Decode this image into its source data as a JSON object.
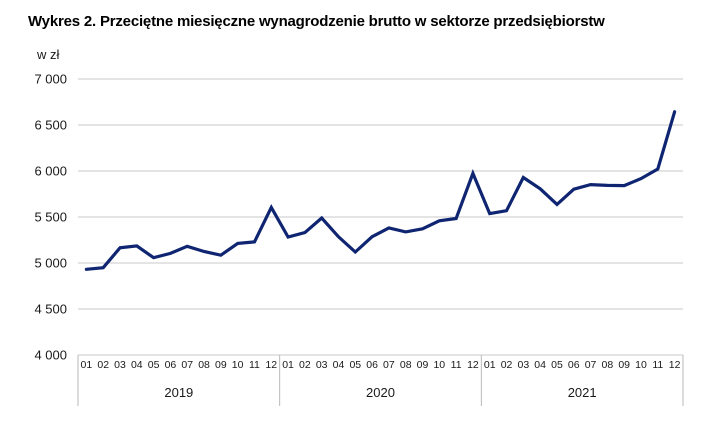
{
  "title": "Wykres 2. Przeciętne miesięczne wynagrodzenie brutto w sektorze przedsiębiorstw",
  "unit_label": "w zł",
  "colors": {
    "line": "#0f2572",
    "grid": "#c8c8c8",
    "axis_box": "#b9b9b9",
    "text": "#1a1a1a",
    "title_text": "#000000",
    "background": "#ffffff"
  },
  "chart_data": {
    "type": "line",
    "title": "Wykres 2. Przeciętne miesięczne wynagrodzenie brutto w sektorze przedsiębiorstw",
    "ylabel": "w zł",
    "xlabel": "",
    "ylim": [
      4000,
      7000
    ],
    "grid": true,
    "legend_position": "none",
    "yticks": [
      7000,
      6500,
      6000,
      5500,
      5000,
      4500,
      4000
    ],
    "ytick_labels": [
      "7 000",
      "6 500",
      "6 000",
      "5 500",
      "5 000",
      "4 500",
      "4 000"
    ],
    "month_labels": [
      "01",
      "02",
      "03",
      "04",
      "05",
      "06",
      "07",
      "08",
      "09",
      "10",
      "11",
      "12"
    ],
    "groups": [
      {
        "year": "2019",
        "values": [
          4932,
          4949,
          5165,
          5186,
          5058,
          5104,
          5182,
          5125,
          5085,
          5213,
          5229,
          5604
        ]
      },
      {
        "year": "2020",
        "values": [
          5283,
          5330,
          5489,
          5285,
          5120,
          5286,
          5382,
          5338,
          5372,
          5459,
          5484,
          5974
        ]
      },
      {
        "year": "2021",
        "values": [
          5537,
          5569,
          5929,
          5806,
          5637,
          5802,
          5852,
          5844,
          5841,
          5917,
          6022,
          6644
        ]
      }
    ],
    "series": [
      {
        "name": "Przeciętne miesięczne wynagrodzenie brutto",
        "values": [
          4932,
          4949,
          5165,
          5186,
          5058,
          5104,
          5182,
          5125,
          5085,
          5213,
          5229,
          5604,
          5283,
          5330,
          5489,
          5285,
          5120,
          5286,
          5382,
          5338,
          5372,
          5459,
          5484,
          5974,
          5537,
          5569,
          5929,
          5806,
          5637,
          5802,
          5852,
          5844,
          5841,
          5917,
          6022,
          6644
        ]
      }
    ]
  }
}
